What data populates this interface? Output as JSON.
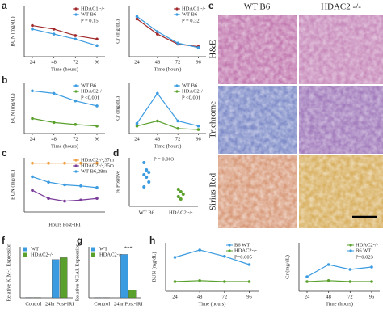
{
  "panel_letters": [
    "a",
    "b",
    "c",
    "d",
    "e",
    "f",
    "g",
    "h"
  ],
  "histology": {
    "columns": [
      "WT B6",
      "HDAC2 -/-"
    ],
    "rows": [
      "H&E",
      "Trichrome",
      "Sirius Red"
    ]
  },
  "chart_data": [
    {
      "type": "line",
      "y_label": "BUN (mg/dL)",
      "x_label": "Time (hours)",
      "x": [
        24,
        48,
        72,
        96
      ],
      "xlim": [
        15,
        105
      ],
      "xticks": [
        24,
        48,
        72,
        96
      ],
      "ylim": [
        0,
        100
      ],
      "annotation": "P = 0.15",
      "series": [
        {
          "name": "HDAC1 -/-",
          "color": "#a0282a",
          "values": [
            62,
            55,
            42,
            35
          ]
        },
        {
          "name": "WT B6",
          "color": "#3b9be0",
          "values": [
            55,
            45,
            35,
            22
          ]
        }
      ]
    },
    {
      "type": "line",
      "y_label": "Cr (mg/dL)",
      "x_label": "Time (hours)",
      "x": [
        24,
        48,
        72,
        96
      ],
      "xlim": [
        15,
        105
      ],
      "xticks": [
        24,
        48,
        72,
        96
      ],
      "ylim": [
        0,
        100
      ],
      "annotation": "P = 0.32",
      "series": [
        {
          "name": "HDAC1 -/-",
          "color": "#a0282a",
          "values": [
            75,
            45,
            25,
            20
          ]
        },
        {
          "name": "WT B6",
          "color": "#3b9be0",
          "values": [
            80,
            50,
            27,
            18
          ]
        }
      ]
    },
    {
      "type": "line",
      "y_label": "BUN (mg/dL)",
      "x_label": "Time (hours)",
      "x": [
        24,
        48,
        72,
        96
      ],
      "xlim": [
        15,
        105
      ],
      "xticks": [
        24,
        48,
        72,
        96
      ],
      "ylim": [
        0,
        100
      ],
      "annotation": "P <0.001",
      "series": [
        {
          "name": "WT B6",
          "color": "#3b9be0",
          "values": [
            85,
            80,
            65,
            55
          ]
        },
        {
          "name": "HDAC2-/-",
          "color": "#5aa02c",
          "values": [
            30,
            22,
            18,
            15
          ]
        }
      ]
    },
    {
      "type": "line",
      "y_label": "Cr (mg/dL)",
      "x_label": "Time (hours)",
      "x": [
        24,
        48,
        72,
        96
      ],
      "xlim": [
        15,
        105
      ],
      "xticks": [
        24,
        48,
        72,
        96
      ],
      "ylim": [
        0,
        100
      ],
      "annotation": "P <0.001",
      "series": [
        {
          "name": "WT B6",
          "color": "#3b9be0",
          "values": [
            20,
            80,
            25,
            15
          ]
        },
        {
          "name": "HDAC2-/-",
          "color": "#5aa02c",
          "values": [
            15,
            25,
            10,
            8
          ]
        }
      ]
    },
    {
      "type": "line",
      "y_label": "BUN (mg/dL)",
      "x_label": "Hours Post-IRI",
      "categories": [
        null,
        null,
        null,
        null,
        null
      ],
      "ylim": [
        0,
        100
      ],
      "series": [
        {
          "name": "HDAC2-/-,37m",
          "color": "#f0a040",
          "values": [
            90,
            90,
            90,
            90,
            90
          ]
        },
        {
          "name": "HDAC2-/-,35m",
          "color": "#7a3c9a",
          "values": [
            40,
            25,
            20,
            22,
            25
          ]
        },
        {
          "name": "WT B6,28m",
          "color": "#3b9be0",
          "values": [
            65,
            55,
            50,
            48,
            45
          ]
        }
      ]
    },
    {
      "type": "strip",
      "y_label": "% Positive",
      "categories": [
        "WT B6",
        "HDAC2 -/-"
      ],
      "ylim": [
        0,
        10
      ],
      "annotation": "P = 0.003",
      "color": "#3b9be0",
      "colors": [
        "#3b9be0",
        "#5aa02c"
      ],
      "groups": [
        [
          9,
          7.5,
          7,
          6.5,
          6,
          5,
          4
        ],
        [
          3.5,
          3,
          2.5,
          2,
          1.5
        ]
      ]
    },
    {
      "type": "bar",
      "y_label": "Relative KIM-1 Expression",
      "categories": [
        "Control",
        "24hr Post-IRI"
      ],
      "ylim": [
        0,
        80
      ],
      "series": [
        {
          "name": "WT",
          "color": "#3b9be0",
          "values": [
            0.5,
            60
          ]
        },
        {
          "name": "HDAC2-/-",
          "color": "#5aa02c",
          "values": [
            0.5,
            63
          ]
        }
      ]
    },
    {
      "type": "bar",
      "y_label": "Relative NGAL Expression",
      "categories": [
        "Control",
        "24hr Post-IRI"
      ],
      "ylim": [
        0,
        100
      ],
      "annotation": "***",
      "series": [
        {
          "name": "WT",
          "color": "#3b9be0",
          "values": [
            0.5,
            85
          ]
        },
        {
          "name": "HDAC2-/-",
          "color": "#5aa02c",
          "values": [
            0.5,
            15
          ]
        }
      ]
    },
    {
      "type": "line",
      "y_label": "BUN (mg/dL)",
      "x_label": "Time (hours)",
      "x": [
        24,
        48,
        72,
        96
      ],
      "xlim": [
        15,
        105
      ],
      "xticks": [
        24,
        48,
        72,
        96
      ],
      "ylim": [
        0,
        100
      ],
      "annotation": "P=0.005",
      "series": [
        {
          "name": "B6 WT",
          "color": "#3b9be0",
          "values": [
            70,
            85,
            72,
            55
          ]
        },
        {
          "name": "HDAC2-/-",
          "color": "#5aa02c",
          "values": [
            20,
            22,
            20,
            20
          ]
        }
      ]
    },
    {
      "type": "line",
      "y_label": "Cr (mg/dL)",
      "x_label": "Time (hours)",
      "x": [
        24,
        48,
        72,
        96
      ],
      "xlim": [
        15,
        105
      ],
      "xticks": [
        24,
        48,
        72,
        96
      ],
      "ylim": [
        0,
        100
      ],
      "annotation": "P=0.023",
      "series": [
        {
          "name": "HDAC2-/-",
          "color": "#5aa02c",
          "values": [
            20,
            22,
            20,
            20
          ]
        },
        {
          "name": "B6 WT",
          "color": "#3b9be0",
          "values": [
            30,
            55,
            45,
            50
          ]
        }
      ]
    }
  ]
}
